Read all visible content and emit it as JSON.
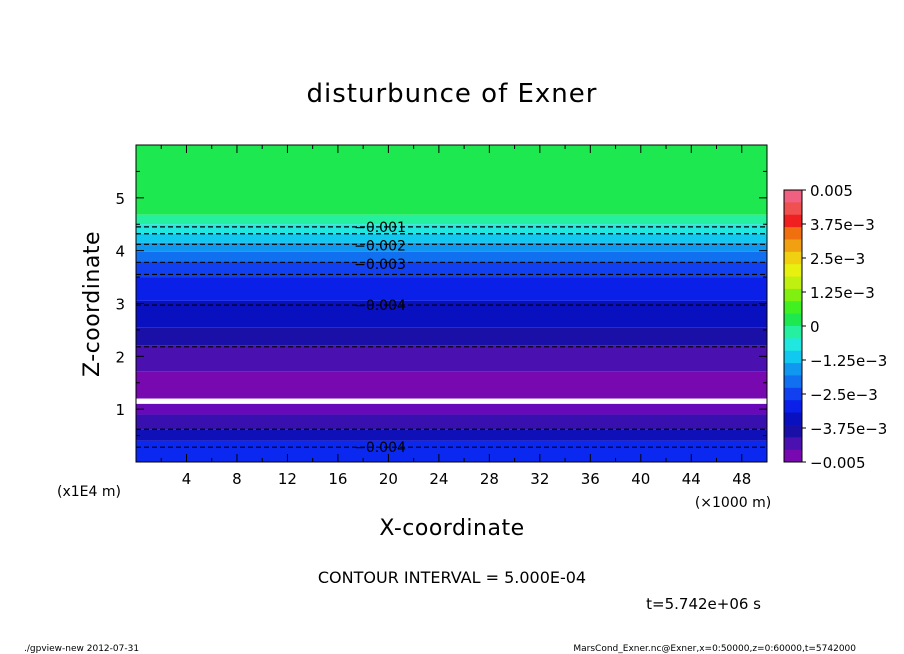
{
  "chart_data": {
    "type": "heatmap",
    "title": "disturbunce of Exner",
    "xlabel": "X-coordinate",
    "ylabel": "Z-coordinate",
    "x_scale_note": "(×1000 m)",
    "y_scale_note": "(x1E4 m)",
    "xlim": [
      0,
      50
    ],
    "ylim": [
      0,
      6
    ],
    "x_ticks": [
      "4",
      "8",
      "12",
      "16",
      "20",
      "24",
      "28",
      "32",
      "36",
      "40",
      "44",
      "48"
    ],
    "y_ticks": [
      "1",
      "2",
      "3",
      "4",
      "5"
    ],
    "contour_interval_text": "CONTOUR INTERVAL = 5.000E-04",
    "time_text": "t=5.742e+06 s",
    "contour_labels": [
      {
        "text": "-0.001",
        "z": 4.45
      },
      {
        "text": "-0.002",
        "z": 4.1
      },
      {
        "text": "-0.003",
        "z": 3.75
      },
      {
        "text": "-0.004",
        "z": 2.97
      },
      {
        "text": "-0.004",
        "z": 0.28
      }
    ],
    "bands": [
      {
        "z0": 4.68,
        "z1": 6.0,
        "color": "#1ee850"
      },
      {
        "z0": 4.5,
        "z1": 4.68,
        "color": "#25f0a0"
      },
      {
        "z0": 4.32,
        "z1": 4.5,
        "color": "#20e8e0"
      },
      {
        "z0": 4.15,
        "z1": 4.32,
        "color": "#10c8f0"
      },
      {
        "z0": 3.98,
        "z1": 4.15,
        "color": "#1098f0"
      },
      {
        "z0": 3.8,
        "z1": 3.98,
        "color": "#1070f0"
      },
      {
        "z0": 3.5,
        "z1": 3.8,
        "color": "#1040f0"
      },
      {
        "z0": 3.05,
        "z1": 3.5,
        "color": "#0a20e8"
      },
      {
        "z0": 2.55,
        "z1": 3.05,
        "color": "#0810c0"
      },
      {
        "z0": 2.2,
        "z1": 2.55,
        "color": "#1a10a8"
      },
      {
        "z0": 1.72,
        "z1": 2.2,
        "color": "#4a10b0"
      },
      {
        "z0": 1.2,
        "z1": 1.72,
        "color": "#7808b0"
      },
      {
        "z0": 1.1,
        "z1": 1.2,
        "color": "#ffffff"
      },
      {
        "z0": 0.9,
        "z1": 1.1,
        "color": "#6808b8"
      },
      {
        "z0": 0.62,
        "z1": 0.9,
        "color": "#3810b0"
      },
      {
        "z0": 0.4,
        "z1": 0.62,
        "color": "#1010b8"
      },
      {
        "z0": 0.0,
        "z1": 0.4,
        "color": "#0a28f0"
      }
    ],
    "dashed_levels": [
      4.45,
      4.32,
      4.12,
      3.78,
      3.55,
      2.97,
      2.18,
      0.62,
      0.28
    ],
    "colorbar": {
      "ticks": [
        "0.005",
        "3.75e-3",
        "2.5e-3",
        "1.25e-3",
        "0",
        "-1.25e-3",
        "-2.5e-3",
        "-3.75e-3",
        "-0.005"
      ],
      "colors": [
        "#f06080",
        "#f05050",
        "#f02020",
        "#f07010",
        "#f0a010",
        "#f0d010",
        "#e8f010",
        "#c0f010",
        "#80f010",
        "#40f020",
        "#1ee850",
        "#25f0a0",
        "#20e8e0",
        "#10c8f0",
        "#1098f0",
        "#1070f0",
        "#1040f0",
        "#0a20e8",
        "#0810c0",
        "#1a10a8",
        "#4a10b0",
        "#7808b0"
      ]
    }
  },
  "footer": {
    "left": "./gpview-new   2012-07-31",
    "right": "MarsCond_Exner.nc@Exner,x=0:50000,z=0:60000,t=5742000"
  }
}
